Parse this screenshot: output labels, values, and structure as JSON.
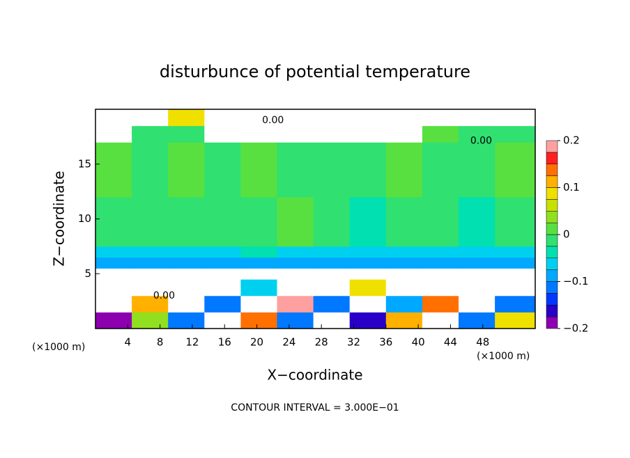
{
  "chart_data": {
    "type": "contour",
    "title": "disturbunce of potential temperature",
    "xlabel": "X−coordinate",
    "ylabel": "Z−coordinate",
    "x_unit_left": "(×1000 m)",
    "x_unit_right": "(×1000 m)",
    "note": "CONTOUR INTERVAL = 3.000E−01",
    "xlim": [
      0,
      54.5
    ],
    "ylim": [
      0,
      20
    ],
    "xticks": [
      4,
      8,
      12,
      16,
      20,
      24,
      28,
      32,
      36,
      40,
      44,
      48
    ],
    "yticks": [
      5,
      10,
      15
    ],
    "x_edges": [
      0,
      4.5,
      9,
      13.5,
      18,
      22.5,
      27,
      31.5,
      36,
      40.5,
      45,
      49.5,
      54.5
    ],
    "z_edges": [
      0,
      1.5,
      3,
      4.5,
      5.5,
      6.5,
      7.5,
      12,
      17,
      18.5,
      20
    ],
    "values": [
      [
        -0.18,
        0.05,
        -0.12,
        0.3,
        0.15,
        -0.1,
        0.3,
        -0.15,
        0.12,
        0.3,
        -0.12,
        0.08
      ],
      [
        0.3,
        0.12,
        0.3,
        -0.1,
        0.3,
        0.18,
        -0.12,
        0.3,
        -0.08,
        0.14,
        0.3,
        -0.1
      ],
      [
        0.3,
        -0.3,
        0.3,
        0.3,
        -0.05,
        0.3,
        0.3,
        0.1,
        0.3,
        -0.3,
        0.3,
        0.3
      ],
      [
        0.3,
        0.3,
        -0.3,
        0.3,
        0.3,
        -0.3,
        0.3,
        0.3,
        -0.3,
        0.3,
        0.3,
        0.3
      ],
      [
        -0.09,
        -0.09,
        -0.09,
        -0.09,
        -0.09,
        -0.09,
        -0.09,
        -0.09,
        -0.09,
        -0.09,
        -0.09,
        -0.09
      ],
      [
        -0.06,
        -0.05,
        -0.05,
        -0.06,
        -0.04,
        -0.05,
        -0.06,
        -0.05,
        -0.05,
        -0.06,
        -0.07,
        -0.05
      ],
      [
        0.0,
        -0.01,
        -0.02,
        0.0,
        -0.01,
        0.01,
        -0.02,
        -0.03,
        0.0,
        -0.02,
        -0.04,
        -0.01
      ],
      [
        0.01,
        0.0,
        0.01,
        0.0,
        0.01,
        -0.01,
        0.0,
        -0.01,
        0.01,
        0.0,
        0.0,
        0.01
      ],
      [
        0.3,
        0.0,
        -0.02,
        0.3,
        -0.3,
        -0.3,
        -0.3,
        -0.3,
        0.3,
        0.01,
        0.0,
        0.0
      ],
      [
        0.3,
        0.3,
        0.1,
        0.3,
        0.3,
        0.3,
        0.3,
        0.3,
        0.3,
        0.3,
        0.3,
        0.3
      ]
    ],
    "colormap": {
      "levels": [
        -0.2,
        -0.175,
        -0.15,
        -0.125,
        -0.1,
        -0.075,
        -0.05,
        -0.025,
        0,
        0.025,
        0.05,
        0.075,
        0.1,
        0.125,
        0.15,
        0.175,
        0.2
      ],
      "colors": [
        "#8c00b0",
        "#2800c8",
        "#0038ff",
        "#0078ff",
        "#00a8ff",
        "#00d0f0",
        "#00e0b0",
        "#30e070",
        "#58e040",
        "#90e020",
        "#c8e000",
        "#f0e000",
        "#ffb000",
        "#ff7000",
        "#ff2020",
        "#ffa0a0"
      ],
      "ticks": [
        {
          "value": -0.2,
          "label": "−0.2"
        },
        {
          "value": -0.1,
          "label": "−0.1"
        },
        0,
        0.1,
        0.2
      ]
    },
    "contour_labels": [
      {
        "x": 22,
        "z": 19,
        "value": 0,
        "label": "0.00"
      },
      {
        "x": 47.8,
        "z": 17.1,
        "value": 0,
        "label": "0.00"
      },
      {
        "x": 8.5,
        "z": 3,
        "value": 0,
        "label": "0.00"
      }
    ]
  }
}
